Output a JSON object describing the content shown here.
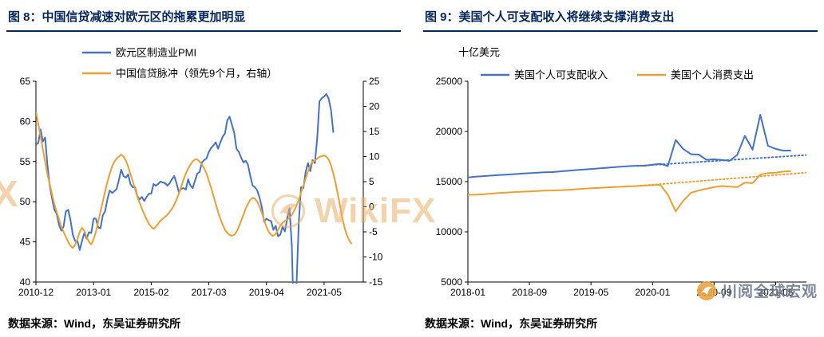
{
  "colors": {
    "blue": "#4472C4",
    "orange": "#ED9F33",
    "navy": "#04265c"
  },
  "watermark": {
    "text": "WikiFX",
    "partial": "X"
  },
  "brand": {
    "text": "川阅全球宏观"
  },
  "charts": [
    {
      "title": "图 8：中国信贷减速对欧元区的拖累更加明显",
      "source": "数据来源：Wind，东吴证券研究所"
    },
    {
      "title": "图 9：美国个人可支配收入将继续支撑消费支出",
      "source": "数据来源：Wind，东吴证券研究所"
    }
  ],
  "chart_data": [
    {
      "type": "line",
      "title": "图 8：中国信贷减速对欧元区的拖累更加明显",
      "grid": false,
      "legend_position": "top",
      "x_axis": {
        "range": [
          0,
          142
        ],
        "ticks": [
          0,
          25,
          50,
          75,
          100,
          125
        ],
        "tick_labels": [
          "2010-12",
          "2013-01",
          "2015-02",
          "2017-03",
          "2019-04",
          "2021-05"
        ]
      },
      "y_left": {
        "range": [
          40,
          65
        ],
        "ticks": [
          40,
          45,
          50,
          55,
          60,
          65
        ]
      },
      "y_right": {
        "range": [
          -15,
          25
        ],
        "ticks": [
          -15,
          -10,
          -5,
          0,
          5,
          10,
          15,
          20,
          25
        ]
      },
      "series": [
        {
          "name": "欧元区制造业PMI",
          "axis": "left",
          "color": "#4472C4",
          "x_start": 0,
          "x_step": 1,
          "values": [
            57.1,
            57.3,
            59.0,
            57.5,
            58.0,
            54.6,
            52.0,
            50.4,
            49.0,
            48.5,
            47.1,
            46.4,
            46.9,
            48.8,
            49.0,
            47.7,
            45.9,
            45.1,
            45.1,
            44.0,
            45.1,
            46.1,
            45.4,
            46.2,
            46.1,
            47.9,
            47.9,
            46.8,
            46.7,
            48.3,
            48.8,
            50.3,
            51.4,
            51.1,
            51.3,
            51.6,
            52.7,
            54.0,
            53.2,
            53.0,
            53.4,
            52.2,
            51.8,
            51.8,
            50.7,
            50.3,
            50.6,
            50.1,
            50.6,
            51.0,
            51.0,
            52.2,
            52.0,
            52.2,
            52.5,
            52.4,
            52.3,
            52.0,
            52.3,
            52.8,
            53.2,
            52.3,
            51.2,
            51.6,
            51.7,
            51.5,
            52.8,
            52.0,
            51.7,
            52.6,
            53.5,
            53.7,
            54.9,
            55.2,
            55.4,
            56.2,
            56.7,
            57.0,
            57.4,
            56.6,
            57.4,
            58.1,
            58.5,
            60.1,
            60.6,
            59.6,
            58.6,
            56.6,
            56.2,
            55.5,
            54.9,
            55.1,
            54.6,
            53.2,
            52.0,
            51.8,
            51.4,
            50.5,
            49.3,
            47.5,
            47.9,
            47.7,
            47.6,
            46.5,
            47.0,
            45.7,
            45.9,
            46.9,
            46.3,
            47.9,
            49.2,
            44.5,
            33.4,
            39.4,
            47.4,
            51.8,
            51.7,
            53.7,
            54.8,
            53.8,
            55.2,
            54.8,
            57.9,
            62.5,
            62.9,
            63.1,
            63.4,
            62.8,
            61.4,
            58.6
          ]
        },
        {
          "name": "中国信贷脉冲（领先9个月，右轴）",
          "axis": "right",
          "color": "#ED9F33",
          "x_start": 0,
          "x_step": 1,
          "values": [
            19.0,
            16.5,
            14.0,
            11.5,
            9.0,
            6.5,
            4.5,
            2.5,
            0.5,
            -1.0,
            -2.5,
            -4.0,
            -5.0,
            -6.0,
            -7.0,
            -7.8,
            -8.2,
            -7.6,
            -6.4,
            -5.0,
            -4.2,
            -4.8,
            -6.0,
            -7.0,
            -7.5,
            -6.5,
            -5.0,
            -3.0,
            -1.0,
            1.0,
            3.0,
            5.0,
            6.5,
            8.0,
            9.0,
            9.6,
            10.0,
            10.4,
            10.0,
            9.2,
            8.0,
            6.5,
            5.0,
            3.5,
            2.0,
            0.8,
            -0.4,
            -1.5,
            -2.5,
            -3.4,
            -4.0,
            -4.4,
            -4.0,
            -3.4,
            -2.8,
            -2.4,
            -2.0,
            -1.6,
            -1.0,
            -0.4,
            0.4,
            1.4,
            2.6,
            4.0,
            5.4,
            6.6,
            7.6,
            8.4,
            9.0,
            9.4,
            9.4,
            9.0,
            8.4,
            7.6,
            6.6,
            5.2,
            3.8,
            2.2,
            0.6,
            -1.0,
            -2.4,
            -3.6,
            -4.6,
            -5.2,
            -5.6,
            -5.8,
            -5.6,
            -5.0,
            -4.0,
            -2.8,
            -1.6,
            -0.4,
            0.6,
            1.4,
            1.8,
            1.6,
            1.0,
            0.0,
            -1.2,
            -2.6,
            -4.0,
            -5.0,
            -5.6,
            -5.8,
            -5.4,
            -4.6,
            -3.8,
            -3.2,
            -2.8,
            -2.6,
            -2.2,
            -1.6,
            -0.8,
            0.2,
            1.4,
            2.8,
            4.2,
            5.6,
            7.0,
            8.2,
            9.0,
            9.2,
            9.6,
            9.9,
            10.1,
            10.2,
            10.0,
            9.4,
            8.2,
            6.6,
            4.6,
            2.4,
            0.0,
            -2.4,
            -4.4,
            -5.8,
            -6.8,
            -7.4
          ]
        }
      ]
    },
    {
      "type": "line",
      "title": "图 9：美国个人可支配收入将继续支撑消费支出",
      "ylabel": "十亿美元",
      "grid": false,
      "legend_position": "top",
      "x_axis": {
        "range": [
          0,
          44
        ],
        "ticks": [
          0,
          8,
          16,
          24,
          32,
          40
        ],
        "tick_labels": [
          "2018-01",
          "2018-09",
          "2019-05",
          "2020-01",
          "2020-09",
          "2021-05"
        ]
      },
      "y_left": {
        "range": [
          5000,
          25000
        ],
        "ticks": [
          5000,
          10000,
          15000,
          20000,
          25000
        ]
      },
      "series": [
        {
          "name": "美国个人可支配收入",
          "axis": "left",
          "color": "#4472C4",
          "x_start": 0,
          "x_step": 1,
          "values": [
            15420,
            15500,
            15550,
            15600,
            15650,
            15700,
            15750,
            15800,
            15840,
            15890,
            15930,
            15950,
            16020,
            16080,
            16150,
            16200,
            16260,
            16320,
            16380,
            16440,
            16500,
            16550,
            16590,
            16590,
            16680,
            16780,
            16550,
            19150,
            18250,
            17730,
            17700,
            17180,
            17220,
            17170,
            17070,
            17660,
            19560,
            18180,
            21670,
            18570,
            18260,
            18090,
            18100
          ]
        },
        {
          "name": "美国个人消费支出",
          "axis": "left",
          "color": "#ED9F33",
          "x_start": 0,
          "x_step": 1,
          "values": [
            13690,
            13700,
            13740,
            13810,
            13870,
            13910,
            13960,
            14000,
            14030,
            14070,
            14100,
            14120,
            14150,
            14180,
            14240,
            14290,
            14340,
            14370,
            14420,
            14470,
            14490,
            14530,
            14560,
            14610,
            14650,
            14690,
            13700,
            12040,
            13100,
            13900,
            14120,
            14290,
            14450,
            14560,
            14510,
            14450,
            14900,
            14850,
            15700,
            15850,
            15900,
            16000,
            16050
          ]
        },
        {
          "name": "可支配收入趋势线",
          "axis": "left",
          "color": "#4472C4",
          "dashed": true,
          "x": [
            22,
            44
          ],
          "values": [
            16560,
            17650
          ]
        },
        {
          "name": "消费支出趋势线",
          "axis": "left",
          "color": "#ED9F33",
          "dashed": true,
          "x": [
            22,
            44
          ],
          "values": [
            14570,
            15900
          ]
        }
      ]
    }
  ]
}
